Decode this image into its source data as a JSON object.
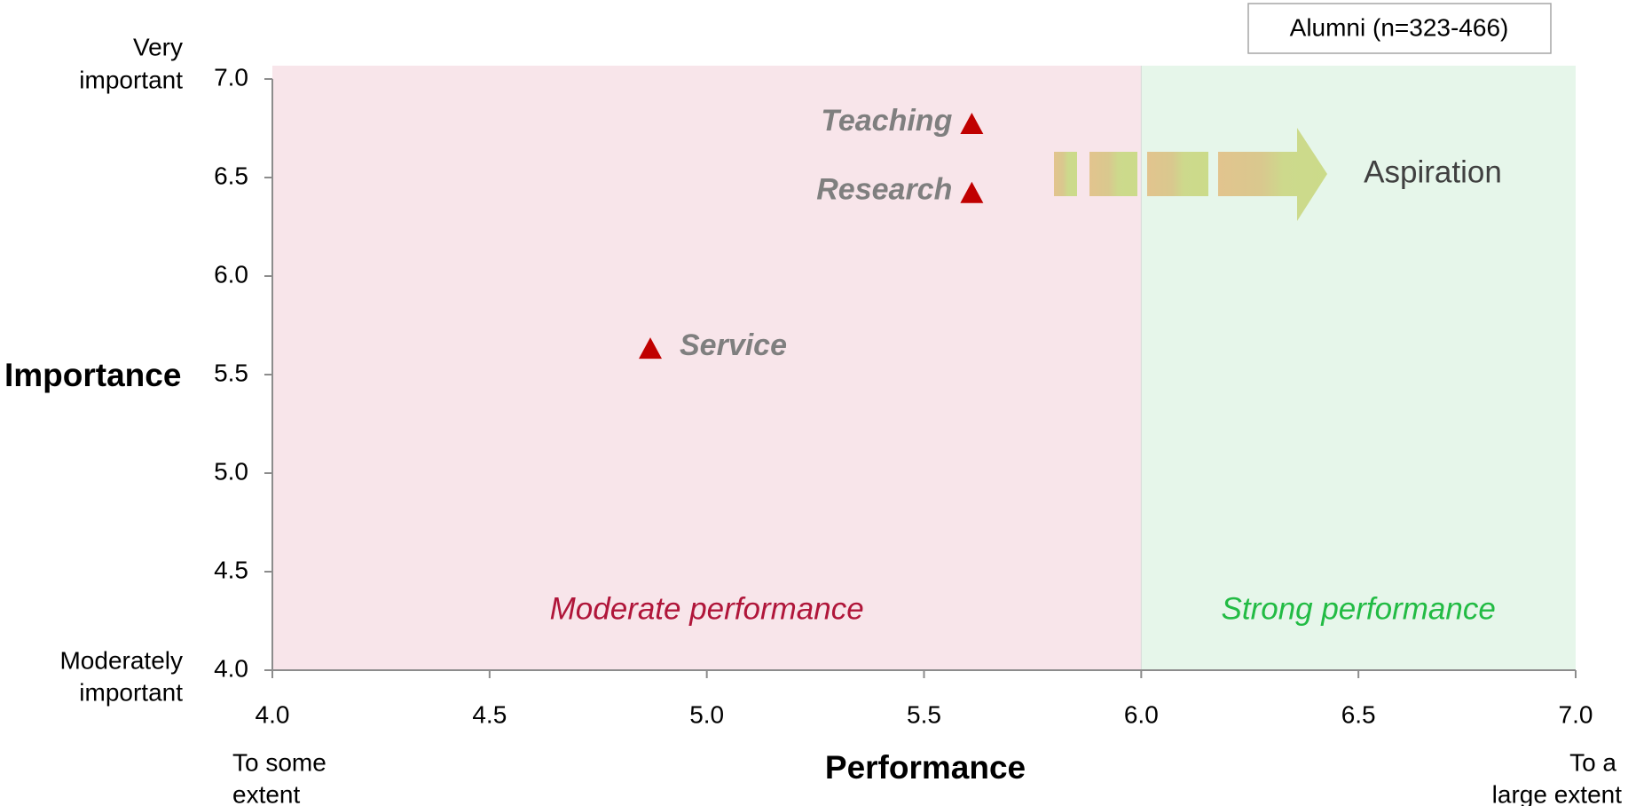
{
  "chart_data": {
    "type": "scatter",
    "legend_box": "Alumni (n=323-466)",
    "xlabel": "Performance",
    "ylabel": "Importance",
    "x_low_label": [
      "To some",
      "extent"
    ],
    "x_high_label": [
      "To a",
      "large extent"
    ],
    "y_high_label": [
      "Very",
      "important"
    ],
    "y_low_label": [
      "Moderately",
      "important"
    ],
    "annotation": "Aspiration",
    "xlim": [
      4.0,
      7.0
    ],
    "ylim": [
      4.0,
      7.0
    ],
    "xticks": [
      {
        "value": 4.0,
        "label": "4.0"
      },
      {
        "value": 4.5,
        "label": "4.5"
      },
      {
        "value": 5.0,
        "label": "5.0"
      },
      {
        "value": 5.5,
        "label": "5.5"
      },
      {
        "value": 6.0,
        "label": "6.0"
      },
      {
        "value": 6.5,
        "label": "6.5"
      },
      {
        "value": 7.0,
        "label": "7.0"
      }
    ],
    "yticks": [
      {
        "value": 4.0,
        "label": "4.0"
      },
      {
        "value": 4.5,
        "label": "4.5"
      },
      {
        "value": 5.0,
        "label": "5.0"
      },
      {
        "value": 5.5,
        "label": "5.5"
      },
      {
        "value": 6.0,
        "label": "6.0"
      },
      {
        "value": 6.5,
        "label": "6.5"
      },
      {
        "value": 7.0,
        "label": "7.0"
      }
    ],
    "regions": [
      {
        "label": "Moderate performance",
        "x": [
          4.0,
          6.0
        ],
        "color": "#f8e5ea",
        "text_color": "#b0163a"
      },
      {
        "label": "Strong performance",
        "x": [
          6.0,
          7.0
        ],
        "color": "#e6f6ea",
        "text_color": "#22bb44"
      }
    ],
    "series": [
      {
        "color": "#c00000",
        "labels": [
          "Teaching",
          "Research",
          "Service"
        ],
        "x": [
          5.61,
          5.61,
          4.87
        ],
        "values": [
          6.77,
          6.42,
          5.63
        ]
      }
    ]
  }
}
